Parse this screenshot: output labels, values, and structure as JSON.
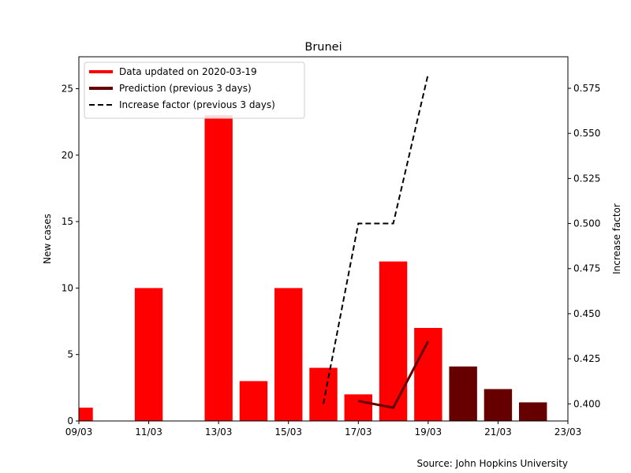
{
  "chart_data": {
    "type": "bar",
    "title": "Brunei",
    "xlabel": "",
    "ylabel": "New cases",
    "y2label": "Increase factor",
    "source": "Source: John Hopkins University",
    "x_ticks": [
      "09/03",
      "11/03",
      "13/03",
      "15/03",
      "17/03",
      "19/03",
      "21/03",
      "23/03"
    ],
    "ylim": [
      0,
      27.4
    ],
    "y_ticks": [
      0,
      5,
      10,
      15,
      20,
      25
    ],
    "y2lim": [
      0.3905,
      0.5925
    ],
    "y2_ticks": [
      "0.400",
      "0.425",
      "0.450",
      "0.475",
      "0.500",
      "0.525",
      "0.550",
      "0.575"
    ],
    "legend_position": "top-left",
    "legend": [
      {
        "label": "Data updated on 2020-03-19",
        "color": "#ff0000",
        "style": "solid-thick"
      },
      {
        "label": "Prediction (previous 3 days)",
        "color": "#660000",
        "style": "solid-thick"
      },
      {
        "label": "Increase factor (previous 3 days)",
        "color": "#000000",
        "style": "dashed"
      }
    ],
    "series": [
      {
        "name": "Data updated on 2020-03-19",
        "kind": "bar",
        "color": "#ff0000",
        "x": [
          "09/03",
          "10/03",
          "11/03",
          "12/03",
          "13/03",
          "14/03",
          "15/03",
          "16/03",
          "17/03",
          "18/03",
          "19/03"
        ],
        "values": [
          1,
          0,
          10,
          0,
          23,
          3,
          10,
          4,
          2,
          12,
          7
        ]
      },
      {
        "name": "Prediction (previous 3 days)",
        "kind": "bar+line",
        "color": "#660000",
        "x": [
          "20/03",
          "21/03",
          "22/03"
        ],
        "values": [
          4.1,
          2.4,
          1.4
        ],
        "line_x": [
          "17/03",
          "18/03",
          "19/03"
        ],
        "line_values": [
          1.5,
          1.0,
          6.0
        ]
      },
      {
        "name": "Increase factor (previous 3 days)",
        "kind": "dashed-line",
        "axis": "right",
        "color": "#000000",
        "x": [
          "16/03",
          "17/03",
          "18/03",
          "19/03"
        ],
        "values": [
          0.4,
          0.5,
          0.5,
          0.583
        ]
      }
    ]
  }
}
